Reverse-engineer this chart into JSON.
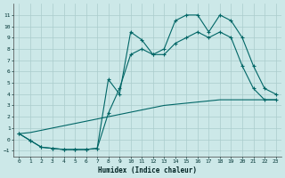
{
  "xlabel": "Humidex (Indice chaleur)",
  "bg_color": "#cce8e8",
  "grid_color": "#aacccc",
  "line_color": "#006666",
  "xlim": [
    -0.5,
    23.5
  ],
  "ylim": [
    -1.5,
    12
  ],
  "yticks": [
    -1,
    0,
    1,
    2,
    3,
    4,
    5,
    6,
    7,
    8,
    9,
    10,
    11
  ],
  "xticks": [
    0,
    1,
    2,
    3,
    4,
    5,
    6,
    7,
    8,
    9,
    10,
    11,
    12,
    13,
    14,
    15,
    16,
    17,
    18,
    19,
    20,
    21,
    22,
    23
  ],
  "line1_x": [
    0,
    1,
    2,
    3,
    4,
    5,
    6,
    7,
    8,
    9,
    10,
    11,
    12,
    13,
    14,
    15,
    16,
    17,
    18,
    19,
    20,
    21,
    22,
    23
  ],
  "line1_y": [
    0.5,
    0.6,
    0.8,
    1.0,
    1.2,
    1.4,
    1.6,
    1.8,
    2.0,
    2.2,
    2.4,
    2.6,
    2.8,
    3.0,
    3.1,
    3.2,
    3.3,
    3.4,
    3.5,
    3.5,
    3.5,
    3.5,
    3.5,
    3.5
  ],
  "line2_x": [
    0,
    1,
    2,
    3,
    4,
    5,
    6,
    7,
    8,
    9,
    10,
    11,
    12,
    13,
    14,
    15,
    16,
    17,
    18,
    19,
    20,
    21,
    22,
    23
  ],
  "line2_y": [
    0.5,
    -0.1,
    -0.7,
    -0.8,
    -0.9,
    -0.9,
    -0.9,
    -0.8,
    2.3,
    4.5,
    7.5,
    8.0,
    7.5,
    7.5,
    8.5,
    9.0,
    9.5,
    9.0,
    9.5,
    9.0,
    6.5,
    4.5,
    3.5,
    3.5
  ],
  "line3_x": [
    0,
    1,
    2,
    3,
    4,
    5,
    6,
    7,
    8,
    9,
    10,
    11,
    12,
    13,
    14,
    15,
    16,
    17,
    18,
    19,
    20,
    21,
    22,
    23
  ],
  "line3_y": [
    0.5,
    -0.1,
    -0.7,
    -0.8,
    -0.9,
    -0.9,
    -0.9,
    -0.8,
    5.3,
    4.0,
    9.5,
    8.8,
    7.5,
    8.0,
    10.5,
    11.0,
    11.0,
    9.5,
    11.0,
    10.5,
    9.0,
    6.5,
    4.5,
    4.0
  ]
}
